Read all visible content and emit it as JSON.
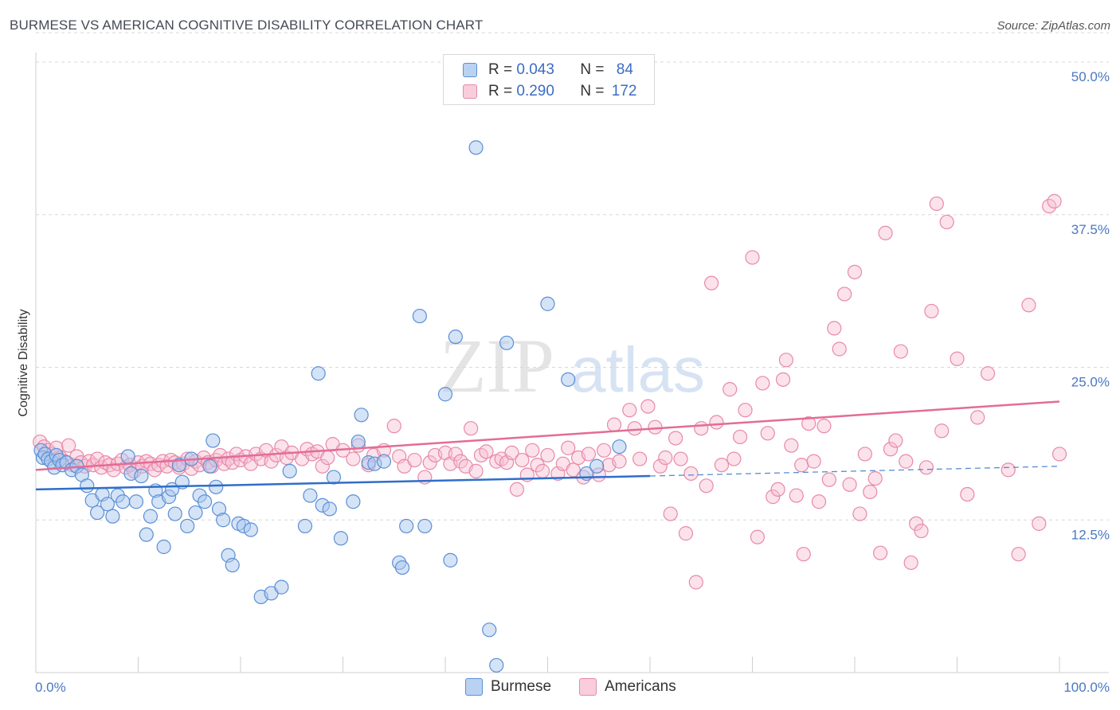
{
  "title": "BURMESE VS AMERICAN COGNITIVE DISABILITY CORRELATION CHART",
  "source": "Source: ZipAtlas.com",
  "watermark": {
    "part1": "ZIP",
    "part2": "atlas"
  },
  "legend": {
    "rows": [
      {
        "r_label": "R =",
        "r_value": "0.043",
        "n_label": "N =",
        "n_value": "84"
      },
      {
        "r_label": "R =",
        "r_value": "0.290",
        "n_label": "N =",
        "n_value": "172"
      }
    ]
  },
  "bottom_legend": {
    "burmese": "Burmese",
    "americans": "Americans"
  },
  "colors": {
    "burmese_fill": "#a9c8ee",
    "burmese_stroke": "#5b8fd6",
    "burmese_line": "#2f6ec9",
    "americans_fill": "#f6bfd2",
    "americans_stroke": "#e889a9",
    "americans_line": "#e36c97",
    "grid": "#d8d8d8",
    "tick_label": "#4a78c2"
  },
  "chart_data": {
    "type": "scatter",
    "title": "BURMESE VS AMERICAN COGNITIVE DISABILITY CORRELATION CHART",
    "xlabel": "",
    "ylabel": "Cognitive Disability",
    "xlim": [
      0,
      100
    ],
    "ylim": [
      0,
      50
    ],
    "x_tick_labels": [
      "0.0%",
      "100.0%"
    ],
    "y_ticks": [
      12.5,
      25.0,
      37.5,
      50.0
    ],
    "y_tick_labels": [
      "12.5%",
      "25.0%",
      "37.5%",
      "50.0%"
    ],
    "grid": true,
    "series": [
      {
        "name": "Burmese",
        "R": 0.043,
        "N": 84,
        "trend": {
          "x0": 0,
          "y0": 15.0,
          "x1": 60,
          "y1": 16.1,
          "dashed_to_x": 100,
          "dashed_to_y": 16.9
        },
        "points": [
          [
            0.5,
            18.2
          ],
          [
            0.7,
            17.6
          ],
          [
            0.9,
            17.9
          ],
          [
            1.2,
            17.5
          ],
          [
            1.5,
            17.3
          ],
          [
            1.8,
            16.8
          ],
          [
            2.0,
            17.8
          ],
          [
            2.3,
            17.4
          ],
          [
            2.6,
            17.0
          ],
          [
            3.0,
            17.2
          ],
          [
            3.5,
            16.6
          ],
          [
            4.0,
            16.9
          ],
          [
            4.5,
            16.2
          ],
          [
            5.0,
            15.3
          ],
          [
            5.5,
            14.1
          ],
          [
            6.0,
            13.1
          ],
          [
            6.5,
            14.6
          ],
          [
            7.0,
            13.8
          ],
          [
            7.5,
            12.8
          ],
          [
            8.0,
            14.5
          ],
          [
            8.5,
            14.0
          ],
          [
            9.0,
            17.7
          ],
          [
            9.3,
            16.3
          ],
          [
            9.8,
            14.0
          ],
          [
            10.3,
            16.1
          ],
          [
            10.8,
            11.3
          ],
          [
            11.2,
            12.8
          ],
          [
            11.7,
            14.9
          ],
          [
            12.0,
            14.0
          ],
          [
            12.5,
            10.3
          ],
          [
            13.0,
            14.4
          ],
          [
            13.3,
            15.0
          ],
          [
            13.6,
            13.0
          ],
          [
            14.0,
            17.0
          ],
          [
            14.3,
            15.6
          ],
          [
            14.8,
            12.0
          ],
          [
            15.2,
            17.5
          ],
          [
            15.6,
            13.1
          ],
          [
            16.0,
            14.5
          ],
          [
            16.5,
            14.0
          ],
          [
            17.0,
            16.9
          ],
          [
            17.3,
            19.0
          ],
          [
            17.6,
            15.2
          ],
          [
            17.9,
            13.4
          ],
          [
            18.3,
            12.5
          ],
          [
            18.8,
            9.6
          ],
          [
            19.2,
            8.8
          ],
          [
            19.8,
            12.2
          ],
          [
            20.3,
            12.0
          ],
          [
            21.0,
            11.7
          ],
          [
            22.0,
            6.2
          ],
          [
            23.0,
            6.5
          ],
          [
            24.0,
            7.0
          ],
          [
            24.8,
            16.5
          ],
          [
            26.3,
            12.0
          ],
          [
            26.8,
            14.5
          ],
          [
            27.6,
            24.5
          ],
          [
            28.0,
            13.7
          ],
          [
            28.7,
            13.4
          ],
          [
            29.1,
            16.0
          ],
          [
            29.8,
            11.0
          ],
          [
            31.0,
            14.0
          ],
          [
            31.5,
            18.9
          ],
          [
            31.8,
            21.1
          ],
          [
            32.5,
            17.2
          ],
          [
            33.1,
            17.1
          ],
          [
            34.0,
            17.3
          ],
          [
            35.5,
            9.0
          ],
          [
            35.8,
            8.6
          ],
          [
            36.2,
            12.0
          ],
          [
            37.5,
            29.2
          ],
          [
            38.0,
            12.0
          ],
          [
            40.0,
            22.8
          ],
          [
            40.5,
            9.2
          ],
          [
            41.0,
            27.5
          ],
          [
            43.0,
            43.0
          ],
          [
            44.3,
            3.5
          ],
          [
            45.0,
            0.6
          ],
          [
            46.0,
            27.0
          ],
          [
            50.0,
            30.2
          ],
          [
            52.0,
            24.0
          ],
          [
            53.8,
            16.3
          ],
          [
            54.8,
            16.9
          ],
          [
            57.0,
            18.5
          ]
        ]
      },
      {
        "name": "Americans",
        "R": 0.29,
        "N": 172,
        "trend": {
          "x0": 0,
          "y0": 16.6,
          "x1": 100,
          "y1": 22.2
        },
        "points": [
          [
            0.4,
            18.9
          ],
          [
            0.8,
            18.5
          ],
          [
            1.2,
            18.2
          ],
          [
            1.6,
            17.9
          ],
          [
            2.0,
            18.4
          ],
          [
            2.4,
            17.6
          ],
          [
            2.8,
            17.3
          ],
          [
            3.2,
            18.6
          ],
          [
            3.6,
            17.0
          ],
          [
            4.0,
            17.7
          ],
          [
            4.4,
            17.2
          ],
          [
            4.8,
            16.9
          ],
          [
            5.2,
            17.3
          ],
          [
            5.6,
            17.0
          ],
          [
            6.0,
            17.5
          ],
          [
            6.4,
            16.8
          ],
          [
            6.8,
            17.2
          ],
          [
            7.2,
            17.0
          ],
          [
            7.6,
            16.6
          ],
          [
            8.0,
            17.1
          ],
          [
            8.4,
            17.4
          ],
          [
            8.8,
            16.8
          ],
          [
            9.2,
            17.0
          ],
          [
            9.6,
            16.5
          ],
          [
            10.0,
            17.2
          ],
          [
            10.4,
            16.9
          ],
          [
            10.8,
            17.3
          ],
          [
            11.2,
            17.1
          ],
          [
            11.6,
            16.6
          ],
          [
            12.0,
            17.0
          ],
          [
            12.4,
            17.3
          ],
          [
            12.8,
            16.9
          ],
          [
            13.2,
            17.4
          ],
          [
            13.6,
            17.2
          ],
          [
            14.0,
            16.8
          ],
          [
            14.4,
            17.1
          ],
          [
            14.8,
            17.5
          ],
          [
            15.2,
            16.7
          ],
          [
            15.6,
            17.3
          ],
          [
            16.0,
            17.0
          ],
          [
            16.4,
            17.6
          ],
          [
            16.8,
            17.2
          ],
          [
            17.2,
            16.9
          ],
          [
            17.6,
            17.4
          ],
          [
            18.0,
            17.8
          ],
          [
            18.4,
            17.1
          ],
          [
            18.8,
            17.5
          ],
          [
            19.2,
            17.2
          ],
          [
            19.6,
            17.9
          ],
          [
            20.0,
            17.4
          ],
          [
            20.5,
            17.7
          ],
          [
            21.0,
            17.1
          ],
          [
            21.5,
            17.9
          ],
          [
            22.0,
            17.5
          ],
          [
            22.5,
            18.2
          ],
          [
            23.0,
            17.3
          ],
          [
            23.5,
            17.8
          ],
          [
            24.0,
            18.5
          ],
          [
            24.5,
            17.6
          ],
          [
            25.0,
            18.0
          ],
          [
            26.0,
            17.5
          ],
          [
            26.5,
            18.3
          ],
          [
            27.0,
            17.9
          ],
          [
            27.5,
            18.1
          ],
          [
            28.0,
            16.9
          ],
          [
            28.5,
            17.6
          ],
          [
            29.0,
            18.7
          ],
          [
            30.0,
            18.2
          ],
          [
            31.0,
            17.5
          ],
          [
            31.5,
            18.6
          ],
          [
            32.5,
            17.0
          ],
          [
            33.0,
            17.8
          ],
          [
            34.0,
            18.2
          ],
          [
            35.0,
            20.2
          ],
          [
            35.5,
            17.7
          ],
          [
            36.0,
            16.9
          ],
          [
            37.0,
            17.4
          ],
          [
            38.0,
            16.0
          ],
          [
            38.5,
            17.2
          ],
          [
            39.0,
            17.8
          ],
          [
            40.0,
            18.0
          ],
          [
            40.5,
            17.1
          ],
          [
            41.0,
            17.9
          ],
          [
            41.5,
            17.3
          ],
          [
            42.0,
            16.9
          ],
          [
            42.5,
            20.0
          ],
          [
            43.0,
            16.5
          ],
          [
            43.5,
            17.8
          ],
          [
            44.0,
            18.1
          ],
          [
            45.0,
            17.3
          ],
          [
            45.5,
            17.5
          ],
          [
            46.0,
            17.2
          ],
          [
            46.5,
            18.0
          ],
          [
            47.0,
            15.0
          ],
          [
            47.5,
            17.4
          ],
          [
            48.0,
            16.2
          ],
          [
            48.5,
            18.2
          ],
          [
            49.0,
            17.0
          ],
          [
            49.5,
            16.5
          ],
          [
            50.0,
            17.8
          ],
          [
            51.0,
            16.3
          ],
          [
            51.5,
            17.1
          ],
          [
            52.0,
            18.4
          ],
          [
            52.5,
            16.6
          ],
          [
            53.0,
            17.6
          ],
          [
            53.5,
            16.0
          ],
          [
            54.0,
            17.9
          ],
          [
            55.0,
            16.2
          ],
          [
            55.5,
            18.2
          ],
          [
            56.0,
            17.0
          ],
          [
            56.5,
            20.3
          ],
          [
            57.0,
            17.3
          ],
          [
            58.0,
            21.5
          ],
          [
            58.5,
            20.0
          ],
          [
            59.0,
            17.5
          ],
          [
            59.8,
            21.8
          ],
          [
            60.5,
            20.1
          ],
          [
            61.0,
            16.9
          ],
          [
            61.5,
            17.6
          ],
          [
            62.0,
            13.0
          ],
          [
            62.5,
            19.2
          ],
          [
            63.0,
            17.5
          ],
          [
            63.5,
            11.4
          ],
          [
            64.0,
            16.3
          ],
          [
            64.5,
            7.4
          ],
          [
            65.0,
            20.0
          ],
          [
            65.5,
            15.3
          ],
          [
            66.0,
            31.9
          ],
          [
            66.5,
            20.5
          ],
          [
            67.0,
            17.0
          ],
          [
            67.8,
            23.2
          ],
          [
            68.2,
            17.5
          ],
          [
            68.8,
            19.3
          ],
          [
            69.3,
            21.5
          ],
          [
            70.0,
            34.0
          ],
          [
            70.5,
            11.1
          ],
          [
            71.0,
            23.7
          ],
          [
            71.5,
            19.6
          ],
          [
            72.0,
            14.4
          ],
          [
            72.5,
            15.0
          ],
          [
            73.0,
            24.0
          ],
          [
            73.3,
            25.6
          ],
          [
            73.8,
            18.6
          ],
          [
            74.3,
            14.5
          ],
          [
            74.8,
            17.0
          ],
          [
            75.0,
            9.7
          ],
          [
            75.5,
            20.4
          ],
          [
            76.0,
            17.3
          ],
          [
            76.5,
            14.0
          ],
          [
            77.0,
            20.2
          ],
          [
            77.5,
            15.8
          ],
          [
            78.0,
            28.2
          ],
          [
            78.5,
            26.5
          ],
          [
            79.0,
            31.0
          ],
          [
            79.5,
            15.4
          ],
          [
            80.0,
            32.8
          ],
          [
            80.5,
            13.0
          ],
          [
            81.0,
            17.9
          ],
          [
            81.5,
            14.8
          ],
          [
            82.0,
            15.9
          ],
          [
            82.5,
            9.8
          ],
          [
            83.0,
            36.0
          ],
          [
            83.5,
            18.3
          ],
          [
            84.0,
            19.0
          ],
          [
            84.5,
            26.3
          ],
          [
            85.0,
            17.3
          ],
          [
            85.5,
            9.0
          ],
          [
            86.0,
            12.2
          ],
          [
            86.5,
            11.6
          ],
          [
            87.0,
            16.8
          ],
          [
            87.5,
            29.6
          ],
          [
            88.0,
            38.4
          ],
          [
            88.5,
            19.8
          ],
          [
            89.0,
            36.9
          ],
          [
            90.0,
            25.7
          ],
          [
            91.0,
            14.6
          ],
          [
            92.0,
            20.9
          ],
          [
            93.0,
            24.5
          ],
          [
            95.0,
            16.6
          ],
          [
            96.0,
            9.7
          ],
          [
            97.0,
            30.1
          ],
          [
            98.0,
            12.2
          ],
          [
            99.0,
            38.2
          ],
          [
            99.5,
            38.6
          ],
          [
            100.0,
            17.9
          ]
        ]
      }
    ]
  }
}
